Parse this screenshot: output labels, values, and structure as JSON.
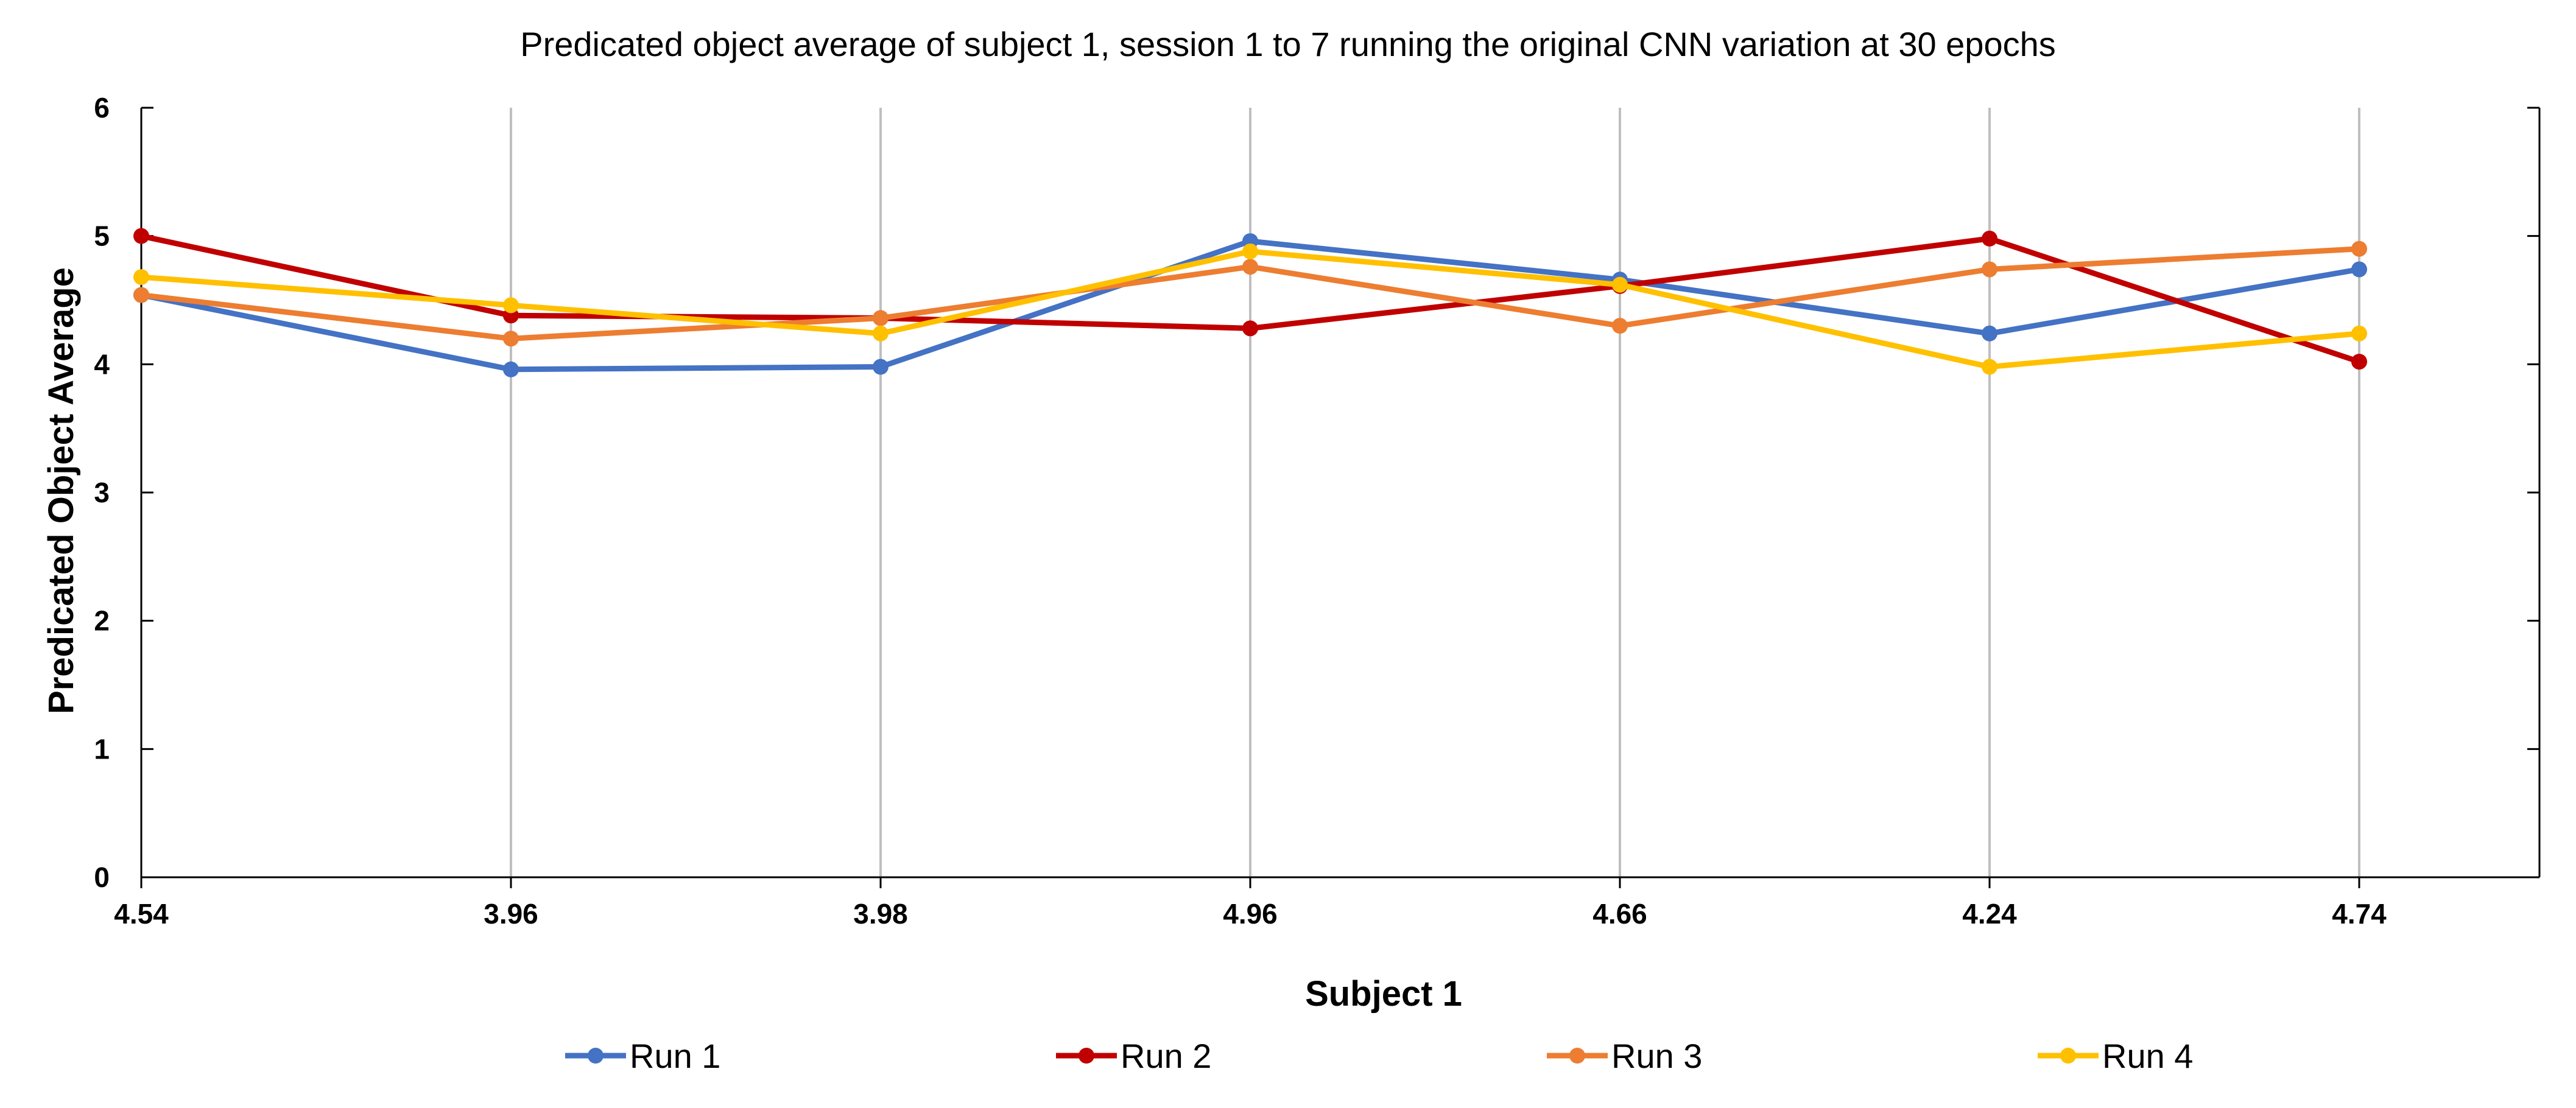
{
  "chart_data": {
    "type": "line",
    "title": "Predicated object average of subject 1, session 1 to 7 running the original CNN variation at 30 epochs",
    "xlabel": "Subject 1",
    "ylabel": "Predicated Object Average",
    "categories": [
      "4.54",
      "3.96",
      "3.98",
      "4.96",
      "4.66",
      "4.24",
      "4.74"
    ],
    "ylim": [
      0,
      6
    ],
    "yticks": [
      "0",
      "1",
      "2",
      "3",
      "4",
      "5",
      "6"
    ],
    "grid": "vertical",
    "legend_position": "bottom",
    "series": [
      {
        "name": "Run 1",
        "color": "#4472C4",
        "values": [
          4.54,
          3.96,
          3.98,
          4.96,
          4.66,
          4.24,
          4.74
        ]
      },
      {
        "name": "Run 2",
        "color": "#C00000",
        "values": [
          5.0,
          4.38,
          4.36,
          4.28,
          4.61,
          4.98,
          4.02
        ]
      },
      {
        "name": "Run 3",
        "color": "#ED7D31",
        "values": [
          4.54,
          4.2,
          4.36,
          4.76,
          4.3,
          4.74,
          4.9
        ]
      },
      {
        "name": "Run 4",
        "color": "#FFC000",
        "values": [
          4.68,
          4.46,
          4.24,
          4.88,
          4.62,
          3.98,
          4.24
        ]
      }
    ]
  }
}
